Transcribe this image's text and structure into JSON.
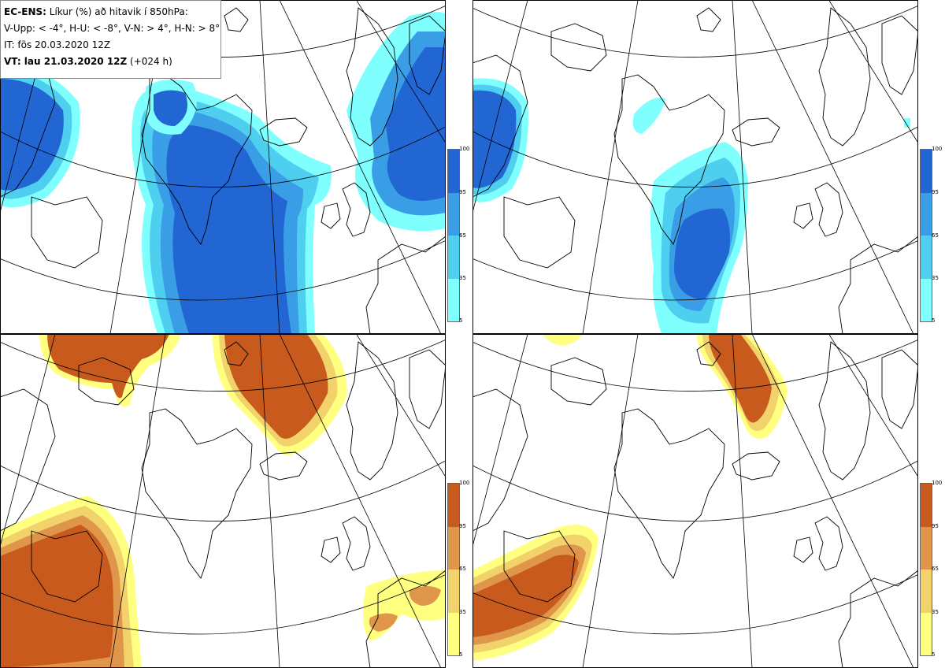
{
  "info": {
    "title_bold": "EC-ENS:",
    "title_rest": " Líkur (%) að hitavik í 850hPa:",
    "thresholds": "V-Upp: < -4°, H-U: < -8°, V-N: > 4°, H-N: > 8°",
    "initial_time": "IT: fös 20.03.2020 12Z",
    "valid_bold": "VT: lau 21.03.2020 12Z",
    "valid_rest": " (+024 h)"
  },
  "colorbar_labels": [
    "100",
    "95",
    "65",
    "35",
    "5"
  ],
  "colors": {
    "cold": [
      "#80ffff",
      "#4fcfef",
      "#3a9ee6",
      "#2166d3"
    ],
    "warm": [
      "#ffff80",
      "#f2d36b",
      "#e0964a",
      "#c85a1e"
    ],
    "coast": "#000000",
    "grid": "#000000"
  },
  "panels": [
    {
      "id": "top-left",
      "field": "cold",
      "threshold": "< -4°"
    },
    {
      "id": "top-right",
      "field": "cold",
      "threshold": "< -8°"
    },
    {
      "id": "bottom-left",
      "field": "warm",
      "threshold": "> 4°"
    },
    {
      "id": "bottom-right",
      "field": "warm",
      "threshold": "> 8°"
    }
  ]
}
